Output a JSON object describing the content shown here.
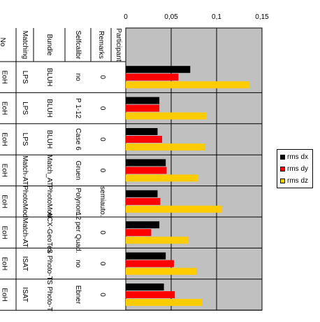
{
  "chart_data": {
    "type": "bar",
    "orientation": "horizontal",
    "title": "",
    "xlabel": "",
    "ylabel": "",
    "xlim": [
      0,
      0.15
    ],
    "x_ticks": [
      "0",
      "0,05",
      "0,1",
      "0,15"
    ],
    "x_tick_values": [
      0,
      0.05,
      0.1,
      0.15
    ],
    "grid": true,
    "plot_background": "#c0c0c0",
    "legend_position": "right",
    "table_headers": [
      "Matching",
      "Bundle",
      "Selfcalibr",
      "Remarks",
      "Participant"
    ],
    "first_column_partial_header": "No",
    "rows": [
      {
        "first": "EoH",
        "matching": "LPS",
        "bundle": "BLUH",
        "selfcalibr": "no",
        "remarks": "0"
      },
      {
        "first": "EoH",
        "matching": "LPS",
        "bundle": "BLUH",
        "selfcalibr": "P 1-12",
        "remarks": "0"
      },
      {
        "first": "EoH",
        "matching": "LPS",
        "bundle": "BLUH",
        "selfcalibr": "Case 6",
        "remarks": "0"
      },
      {
        "first": "EoH",
        "matching": "Match-AT",
        "bundle": "Match_AT",
        "selfcalibr": "Gruen",
        "remarks": "0"
      },
      {
        "first": "EoH",
        "matching": "PhotoMod",
        "bundle": "PhotoMod",
        "selfcalibr": "Polynom",
        "remarks": "semiauto."
      },
      {
        "first": "EoH",
        "matching": "Match-AT",
        "bundle": "ACX-GeoTex",
        "selfcalibr": "12 per Quad.",
        "remarks": "0"
      },
      {
        "first": "EoH",
        "matching": "ISAT",
        "bundle": "IS Photo-T",
        "selfcalibr": "no",
        "remarks": "0"
      },
      {
        "first": "EoH",
        "matching": "ISAT",
        "bundle": "IS Photo-T",
        "selfcalibr": "Ebner",
        "remarks": "0"
      }
    ],
    "series": [
      {
        "name": "rms dx",
        "color": "#000000",
        "values": [
          0.071,
          0.037,
          0.035,
          0.044,
          0.035,
          0.037,
          0.044,
          0.042
        ]
      },
      {
        "name": "rms dy",
        "color": "#ff0000",
        "values": [
          0.058,
          0.037,
          0.04,
          0.045,
          0.038,
          0.028,
          0.053,
          0.054
        ]
      },
      {
        "name": "rms dz",
        "color": "#ffcc00",
        "values": [
          0.136,
          0.089,
          0.087,
          0.08,
          0.106,
          0.069,
          0.078,
          0.084
        ]
      }
    ]
  }
}
